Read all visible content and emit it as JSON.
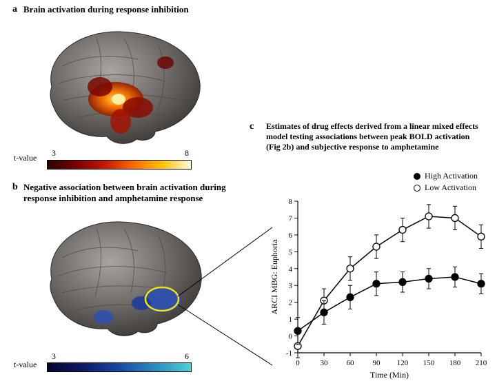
{
  "panel_a": {
    "label": "a",
    "title": "Brain activation during response inhibition",
    "colorbar": {
      "label": "t-value",
      "min": 3,
      "max": 8,
      "gradient_type": "hot"
    },
    "brain": {
      "surface_color": "#6e6a68",
      "highlight_color": "#ff5a00",
      "bright_color": "#ffe066"
    }
  },
  "panel_b": {
    "label": "b",
    "title": "Negative association between brain activation during response inhibition and amphetamine response",
    "colorbar": {
      "label": "t-value",
      "min": 3,
      "max": 6,
      "gradient_type": "cool"
    },
    "brain": {
      "surface_color": "#6e6a68",
      "cluster_color": "#2b4fb3",
      "circle_color": "#f5e400"
    }
  },
  "panel_c": {
    "label": "c",
    "title": "Estimates of drug effects derived from a linear mixed effects model testing associations between peak BOLD activation (Fig 2b) and subjective response to amphetamine",
    "title_fontsize": 12,
    "x_label": "Time (Min)",
    "y_label": "ARCI MBG: Euphoria",
    "label_fontsize": 12,
    "x_ticks": [
      0,
      30,
      60,
      90,
      120,
      150,
      180,
      210
    ],
    "y_ticks": [
      -1,
      0,
      1,
      2,
      3,
      4,
      5,
      6,
      7,
      8
    ],
    "xlim": [
      0,
      210
    ],
    "ylim": [
      -1,
      8
    ],
    "axis_color": "#000000",
    "background_color": "#ffffff",
    "tick_fontsize": 11,
    "line_width": 1.5,
    "marker_size": 5,
    "error_cap_width": 6,
    "legend": {
      "position": "top-right",
      "items": [
        {
          "key": "high",
          "label": "High Activation",
          "marker": "filled"
        },
        {
          "key": "low",
          "label": "Low Activation",
          "marker": "open"
        }
      ]
    },
    "series": {
      "high": {
        "label": "High Activation",
        "marker_fill": "#000000",
        "marker_stroke": "#000000",
        "line_color": "#000000",
        "x": [
          0,
          30,
          60,
          90,
          120,
          150,
          180,
          210
        ],
        "y": [
          0.3,
          1.4,
          2.3,
          3.1,
          3.2,
          3.4,
          3.5,
          3.1
        ],
        "err": [
          0.8,
          0.7,
          0.7,
          0.7,
          0.6,
          0.6,
          0.6,
          0.6
        ]
      },
      "low": {
        "label": "Low Activation",
        "marker_fill": "#ffffff",
        "marker_stroke": "#000000",
        "line_color": "#000000",
        "x": [
          0,
          30,
          60,
          90,
          120,
          150,
          180,
          210
        ],
        "y": [
          -0.6,
          2.1,
          4.0,
          5.3,
          6.3,
          7.1,
          7.0,
          5.9
        ],
        "err": [
          0.7,
          0.7,
          0.7,
          0.7,
          0.7,
          0.7,
          0.7,
          0.7
        ]
      }
    }
  },
  "connector_line": {
    "color": "#000000",
    "width": 1
  }
}
